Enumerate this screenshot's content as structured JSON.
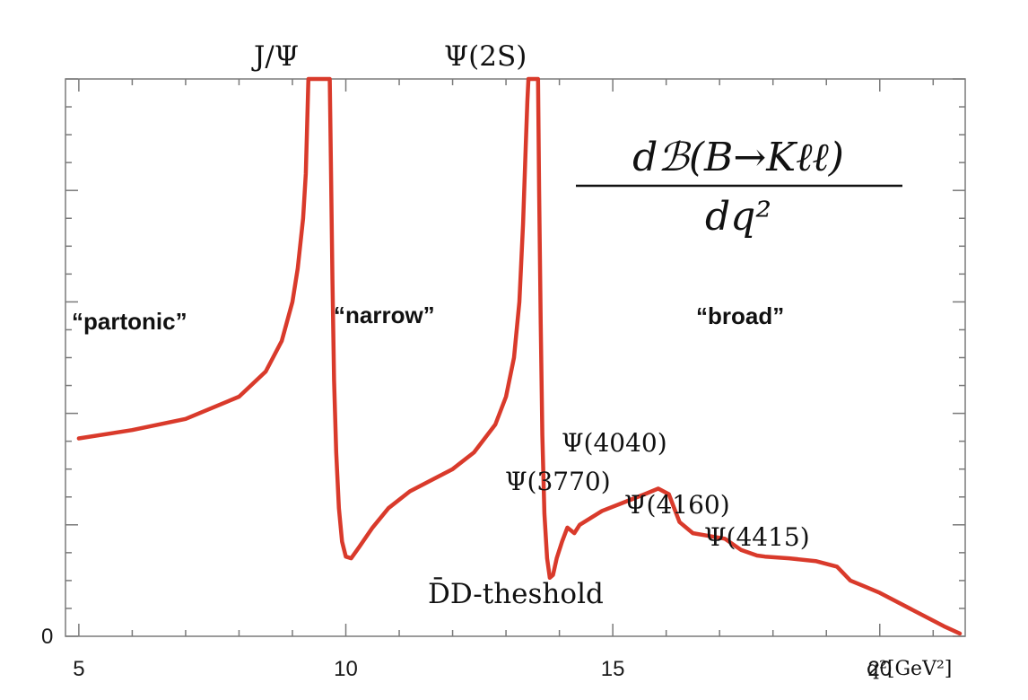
{
  "chart_data": {
    "type": "line",
    "title": "",
    "formula": {
      "numerator": "dℬ(B→Kℓℓ)",
      "denominator": "dq²"
    },
    "xlabel": "q²[GeV²]",
    "ylabel": "",
    "xlim": [
      4.75,
      21.6
    ],
    "ylim": [
      0,
      1.0
    ],
    "x_ticks": [
      5,
      10,
      15,
      20
    ],
    "x_tick_labels": [
      "5",
      "10",
      "15",
      "20"
    ],
    "y_tick_labels": [
      "0"
    ],
    "region_labels": [
      "“partonic”",
      "“narrow”",
      "“broad”"
    ],
    "resonance_labels": [
      "J/Ψ",
      "Ψ(2S)",
      "Ψ(3770)",
      "Ψ(4040)",
      "Ψ(4160)",
      "Ψ(4415)"
    ],
    "threshold_label": "D̄D-theshold",
    "series": [
      {
        "name": "dB(B→Kℓℓ)/dq²",
        "color": "#d93a2b",
        "x": [
          5.0,
          6.0,
          7.0,
          8.0,
          8.5,
          8.8,
          9.0,
          9.1,
          9.2,
          9.25,
          9.27,
          9.3,
          9.7,
          9.72,
          9.75,
          9.78,
          9.82,
          9.87,
          9.93,
          10.0,
          10.1,
          10.25,
          10.5,
          10.8,
          11.2,
          11.6,
          12.0,
          12.4,
          12.8,
          13.0,
          13.15,
          13.25,
          13.32,
          13.37,
          13.4,
          13.42,
          13.6,
          13.62,
          13.65,
          13.68,
          13.72,
          13.77,
          13.82,
          13.88,
          13.95,
          14.05,
          14.15,
          14.28,
          14.38,
          14.55,
          14.8,
          15.2,
          15.6,
          15.85,
          16.05,
          16.25,
          16.5,
          16.8,
          17.1,
          17.4,
          17.7,
          17.85,
          18.3,
          18.8,
          19.2,
          19.45,
          19.7,
          20.0,
          20.6,
          21.2,
          21.5
        ],
        "y": [
          0.355,
          0.37,
          0.39,
          0.43,
          0.475,
          0.53,
          0.6,
          0.66,
          0.75,
          0.83,
          0.9,
          1.0,
          1.0,
          0.86,
          0.64,
          0.46,
          0.33,
          0.23,
          0.17,
          0.143,
          0.14,
          0.16,
          0.195,
          0.23,
          0.26,
          0.28,
          0.3,
          0.33,
          0.38,
          0.43,
          0.5,
          0.6,
          0.74,
          0.88,
          0.96,
          1.0,
          1.0,
          0.8,
          0.56,
          0.36,
          0.22,
          0.14,
          0.105,
          0.11,
          0.14,
          0.17,
          0.195,
          0.185,
          0.2,
          0.21,
          0.225,
          0.24,
          0.255,
          0.265,
          0.255,
          0.205,
          0.185,
          0.18,
          0.175,
          0.155,
          0.145,
          0.143,
          0.14,
          0.135,
          0.125,
          0.1,
          0.09,
          0.078,
          0.048,
          0.018,
          0.005
        ]
      }
    ]
  }
}
